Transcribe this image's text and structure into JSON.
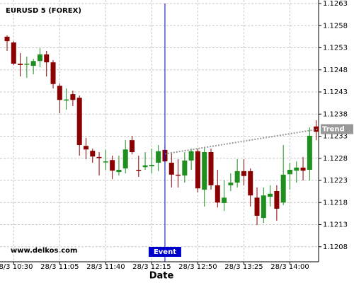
{
  "chart_data": {
    "type": "candlestick",
    "title": "EURUSD 5 (FOREX)",
    "watermark": "www.delkos.com",
    "x_label": "Date",
    "categories": [
      null,
      "28/3 10:30",
      null,
      null,
      null,
      null,
      null,
      null,
      "28/3 11:05",
      null,
      null,
      null,
      null,
      null,
      null,
      "28/3 11:40",
      null,
      null,
      null,
      null,
      null,
      null,
      "28/3 12:15",
      null,
      null,
      null,
      null,
      null,
      null,
      "28/3 12:50",
      null,
      null,
      null,
      null,
      null,
      null,
      "28/3 13:25",
      null,
      null,
      null,
      null,
      null,
      null,
      "28/3 14:00",
      null,
      null,
      null,
      null
    ],
    "open": [
      1.12555,
      1.12542,
      1.12494,
      1.12492,
      1.12489,
      1.125,
      1.12515,
      1.12497,
      1.12444,
      1.12412,
      1.12425,
      1.12417,
      1.12308,
      1.12297,
      1.12283,
      1.12271,
      1.12276,
      1.12249,
      1.12257,
      1.12321,
      1.12254,
      1.1226,
      1.12262,
      1.1227,
      1.12299,
      1.1227,
      1.12243,
      1.12241,
      1.12275,
      1.12296,
      1.12209,
      1.12294,
      1.12219,
      1.12179,
      1.12219,
      1.12225,
      1.12251,
      1.12251,
      1.12191,
      1.12145,
      1.12193,
      1.12206,
      1.1218,
      1.12244,
      1.12252,
      1.12259,
      1.12254,
      1.12352
    ],
    "high": [
      1.12558,
      1.12545,
      1.12518,
      1.1251,
      1.12505,
      1.12529,
      1.12523,
      1.12502,
      1.12449,
      1.12438,
      1.12433,
      1.12422,
      1.12326,
      1.12302,
      1.12294,
      1.12299,
      1.12286,
      1.12286,
      1.12321,
      1.12331,
      1.12286,
      1.12294,
      1.12302,
      1.1231,
      1.1231,
      1.12294,
      1.12278,
      1.12294,
      1.12302,
      1.12302,
      1.12305,
      1.12302,
      1.12254,
      1.1223,
      1.12246,
      1.12278,
      1.12278,
      1.12257,
      1.12214,
      1.12214,
      1.12219,
      1.12219,
      1.1231,
      1.1227,
      1.12273,
      1.12283,
      1.1235,
      1.12366
    ],
    "low": [
      1.12523,
      1.12491,
      1.12465,
      1.12462,
      1.1247,
      1.12486,
      1.12465,
      1.12438,
      1.12382,
      1.1239,
      1.12398,
      1.12286,
      1.12278,
      1.1227,
      1.12241,
      1.12254,
      1.12233,
      1.12241,
      1.12246,
      1.12289,
      1.12238,
      1.12254,
      1.12246,
      1.12251,
      1.12254,
      1.12214,
      1.12214,
      1.12225,
      1.12254,
      1.12203,
      1.12171,
      1.12209,
      1.12169,
      1.12161,
      1.12206,
      1.12214,
      1.12219,
      1.12171,
      1.12129,
      1.12134,
      1.12171,
      1.12139,
      1.12174,
      1.12209,
      1.12225,
      1.1223,
      1.1223,
      1.12321
    ],
    "close": [
      1.12545,
      1.12494,
      1.12491,
      1.12494,
      1.125,
      1.12515,
      1.12497,
      1.12448,
      1.12412,
      1.12413,
      1.12412,
      1.1231,
      1.123,
      1.12284,
      1.12281,
      1.12273,
      1.12252,
      1.12254,
      1.123,
      1.12294,
      1.12252,
      1.12264,
      1.12265,
      1.12296,
      1.12273,
      1.12243,
      1.12241,
      1.12275,
      1.12296,
      1.12212,
      1.12294,
      1.12219,
      1.1218,
      1.12191,
      1.12225,
      1.12251,
      1.1224,
      1.12196,
      1.1215,
      1.12196,
      1.122,
      1.12166,
      1.12243,
      1.12254,
      1.12259,
      1.12252,
      1.12331,
      1.1234
    ],
    "up_color": "#1f8f1f",
    "down_color": "#8b0000",
    "ylim": [
      1.12046,
      1.12638
    ],
    "yticks": [
      1.1208,
      1.1213,
      1.1218,
      1.1223,
      1.1228,
      1.1233,
      1.1238,
      1.1243,
      1.1248,
      1.1253,
      1.1258,
      1.1263
    ],
    "grid": true,
    "event": {
      "label": "Event",
      "index": 24,
      "color": "#0000cc"
    },
    "trend": {
      "label": "Trend",
      "from_index": 24,
      "values": [
        1.1229,
        1.12346
      ],
      "color": "#999999"
    }
  }
}
